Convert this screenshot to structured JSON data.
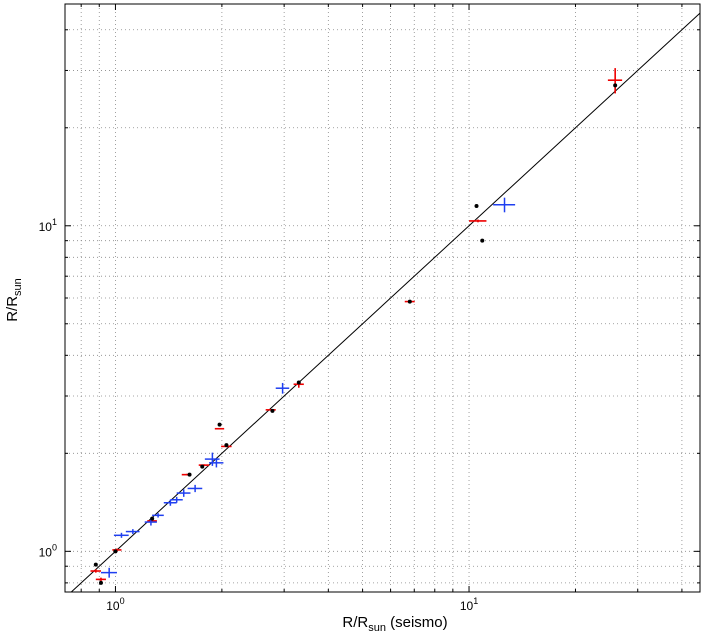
{
  "chart_data": {
    "type": "scatter",
    "title": "",
    "x_scale": "log",
    "y_scale": "log",
    "xlim": [
      0.72,
      45
    ],
    "ylim": [
      0.75,
      48
    ],
    "grid": true,
    "xlabel": {
      "main": "R/R",
      "sub": "sun",
      "suffix": " (seismo)"
    },
    "ylabel": {
      "main": "R/R",
      "sub": "sun"
    },
    "x_ticks": [
      {
        "value": 1,
        "base": "10",
        "exp": "0"
      },
      {
        "value": 10,
        "base": "10",
        "exp": "1"
      }
    ],
    "y_ticks": [
      {
        "value": 1,
        "base": "10",
        "exp": "0"
      },
      {
        "value": 10,
        "base": "10",
        "exp": "1"
      }
    ],
    "reference_line": "y = x",
    "colors": {
      "red": "#ee0000",
      "blue": "#1f3ff0",
      "black": "#000000",
      "line": "#000000"
    },
    "series": [
      {
        "marker": "cross-red",
        "points": [
          {
            "x": 0.88,
            "y": 0.87,
            "xerr": 0.03,
            "yerr": 0.01
          },
          {
            "x": 0.91,
            "y": 0.82,
            "xerr": 0.03,
            "yerr": 0.01
          },
          {
            "x": 1.01,
            "y": 1.01,
            "xerr": 0.03,
            "yerr": 0.01
          },
          {
            "x": 1.27,
            "y": 1.24,
            "xerr": 0.04,
            "yerr": 0.01
          },
          {
            "x": 1.59,
            "y": 1.72,
            "xerr": 0.05,
            "yerr": 0.01
          },
          {
            "x": 1.78,
            "y": 1.84,
            "xerr": 0.06,
            "yerr": 0.01
          },
          {
            "x": 1.97,
            "y": 2.38,
            "xerr": 0.06,
            "yerr": 0.01
          },
          {
            "x": 2.06,
            "y": 2.1,
            "xerr": 0.07,
            "yerr": 0.01
          },
          {
            "x": 2.75,
            "y": 2.72,
            "xerr": 0.09,
            "yerr": 0.01
          },
          {
            "x": 3.3,
            "y": 3.26,
            "xerr": 0.11,
            "yerr": 0.08
          },
          {
            "x": 6.8,
            "y": 5.85,
            "xerr": 0.22,
            "yerr": 0.03
          },
          {
            "x": 10.6,
            "y": 10.35,
            "xerr": 0.6,
            "yerr": 0.1
          },
          {
            "x": 25.9,
            "y": 28.0,
            "xerr": 1.2,
            "yerr": 2.5
          }
        ]
      },
      {
        "marker": "cross-blue",
        "points": [
          {
            "x": 0.96,
            "y": 0.86,
            "xerr": 0.05,
            "yerr": 0.03
          },
          {
            "x": 1.04,
            "y": 1.12,
            "xerr": 0.05,
            "yerr": 0.02
          },
          {
            "x": 1.12,
            "y": 1.15,
            "xerr": 0.05,
            "yerr": 0.02
          },
          {
            "x": 1.26,
            "y": 1.23,
            "xerr": 0.05,
            "yerr": 0.03
          },
          {
            "x": 1.32,
            "y": 1.29,
            "xerr": 0.05,
            "yerr": 0.02
          },
          {
            "x": 1.43,
            "y": 1.41,
            "xerr": 0.06,
            "yerr": 0.03
          },
          {
            "x": 1.49,
            "y": 1.44,
            "xerr": 0.06,
            "yerr": 0.03
          },
          {
            "x": 1.56,
            "y": 1.51,
            "xerr": 0.07,
            "yerr": 0.04
          },
          {
            "x": 1.68,
            "y": 1.56,
            "xerr": 0.08,
            "yerr": 0.04
          },
          {
            "x": 1.88,
            "y": 1.92,
            "xerr": 0.09,
            "yerr": 0.09
          },
          {
            "x": 1.93,
            "y": 1.87,
            "xerr": 0.09,
            "yerr": 0.06
          },
          {
            "x": 2.97,
            "y": 3.17,
            "xerr": 0.13,
            "yerr": 0.12
          },
          {
            "x": 12.6,
            "y": 11.6,
            "xerr": 0.9,
            "yerr": 0.6
          }
        ]
      },
      {
        "marker": "dot-black",
        "points": [
          {
            "x": 0.88,
            "y": 0.91
          },
          {
            "x": 0.91,
            "y": 0.8
          },
          {
            "x": 1.0,
            "y": 1.0
          },
          {
            "x": 1.27,
            "y": 1.26
          },
          {
            "x": 1.62,
            "y": 1.72
          },
          {
            "x": 1.76,
            "y": 1.82
          },
          {
            "x": 1.97,
            "y": 2.45
          },
          {
            "x": 2.06,
            "y": 2.12
          },
          {
            "x": 2.78,
            "y": 2.7
          },
          {
            "x": 3.3,
            "y": 3.3
          },
          {
            "x": 6.8,
            "y": 5.85
          },
          {
            "x": 10.5,
            "y": 11.5
          },
          {
            "x": 10.9,
            "y": 9.0
          },
          {
            "x": 25.9,
            "y": 27.0
          }
        ]
      }
    ]
  }
}
